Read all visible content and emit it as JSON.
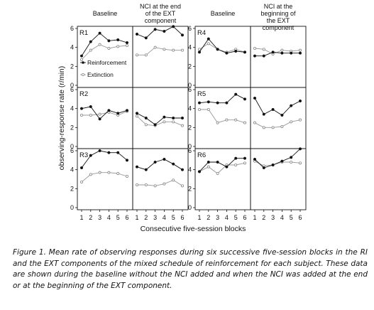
{
  "chart_data": {
    "type": "line",
    "column_headers": [
      "Baseline",
      "NCI at the end\nof the EXT\ncomponent",
      "Baseline",
      "NCI at the\nbeginning of\nthe EXT\ncomponent"
    ],
    "x": [
      1,
      2,
      3,
      4,
      5,
      6
    ],
    "xticks": [
      "1",
      "2",
      "3",
      "4",
      "5",
      "6"
    ],
    "xlabel": "Consecutive five-session blocks",
    "ylabel": "observing-response rate (r/min)",
    "ylim": [
      0,
      6
    ],
    "yticks": [
      "0",
      "2",
      "4",
      "6"
    ],
    "legend": {
      "placement": "inside top-left panel",
      "reinforcement": "Reinforcement",
      "extinction": "Extinction"
    },
    "panels": [
      {
        "row": 0,
        "col": 0,
        "subject": "R1",
        "reinforcement": [
          3.1,
          4.6,
          5.5,
          4.7,
          4.8,
          4.5
        ],
        "extinction": [
          2.7,
          3.7,
          4.3,
          3.9,
          4.1,
          4.2
        ]
      },
      {
        "row": 0,
        "col": 1,
        "subject": "",
        "reinforcement": [
          5.4,
          5.0,
          5.9,
          5.7,
          6.2,
          5.3
        ],
        "extinction": [
          3.2,
          3.2,
          4.0,
          3.8,
          3.7,
          3.7
        ]
      },
      {
        "row": 0,
        "col": 2,
        "subject": "R4",
        "reinforcement": [
          3.5,
          4.9,
          3.8,
          3.4,
          3.6,
          3.5
        ],
        "extinction": [
          3.8,
          4.4,
          3.8,
          3.5,
          3.8,
          3.5
        ]
      },
      {
        "row": 0,
        "col": 3,
        "subject": "",
        "reinforcement": [
          3.1,
          3.1,
          3.5,
          3.4,
          3.4,
          3.4
        ],
        "extinction": [
          3.9,
          3.8,
          3.3,
          3.7,
          3.6,
          3.7
        ]
      },
      {
        "row": 1,
        "col": 0,
        "subject": "R2",
        "reinforcement": [
          4.0,
          4.2,
          2.9,
          3.8,
          3.5,
          3.8
        ],
        "extinction": [
          3.3,
          3.3,
          3.4,
          3.6,
          3.3,
          3.7
        ]
      },
      {
        "row": 1,
        "col": 1,
        "subject": "",
        "reinforcement": [
          3.5,
          3.0,
          2.3,
          3.1,
          3.0,
          3.0
        ],
        "extinction": [
          3.2,
          2.3,
          2.2,
          2.6,
          2.6,
          2.2
        ]
      },
      {
        "row": 1,
        "col": 2,
        "subject": "R5",
        "reinforcement": [
          4.6,
          4.7,
          4.6,
          4.6,
          5.5,
          5.0
        ],
        "extinction": [
          3.9,
          3.9,
          2.5,
          2.8,
          2.8,
          2.5
        ]
      },
      {
        "row": 1,
        "col": 3,
        "subject": "",
        "reinforcement": [
          5.1,
          3.4,
          3.9,
          3.3,
          4.3,
          4.8
        ],
        "extinction": [
          2.5,
          2.0,
          2.0,
          2.1,
          2.6,
          2.8
        ]
      },
      {
        "row": 2,
        "col": 0,
        "subject": "R3",
        "reinforcement": [
          4.2,
          5.5,
          6.0,
          5.8,
          5.8,
          5.0
        ],
        "extinction": [
          2.7,
          3.5,
          3.7,
          3.7,
          3.6,
          3.3
        ]
      },
      {
        "row": 2,
        "col": 1,
        "subject": "",
        "reinforcement": [
          4.3,
          4.0,
          4.8,
          5.1,
          4.6,
          4.0
        ],
        "extinction": [
          2.4,
          2.4,
          2.3,
          2.5,
          2.9,
          2.3
        ]
      },
      {
        "row": 2,
        "col": 2,
        "subject": "R6",
        "reinforcement": [
          3.8,
          4.8,
          4.8,
          4.3,
          5.2,
          5.2
        ],
        "extinction": [
          3.8,
          4.3,
          3.6,
          4.5,
          4.5,
          4.7
        ]
      },
      {
        "row": 2,
        "col": 3,
        "subject": "",
        "reinforcement": [
          5.1,
          4.2,
          4.5,
          4.9,
          5.3,
          6.2
        ],
        "extinction": [
          4.9,
          4.4,
          4.5,
          4.8,
          4.8,
          4.7
        ]
      }
    ]
  },
  "caption": "Figure 1. Mean rate of observing responses during six successive five-session blocks in the RI and the EXT components of the mixed schedule of reinforcement for each subject. These data are shown during the baseline without the NCI added and when the NCI was added at the end or at the beginning of the EXT component."
}
